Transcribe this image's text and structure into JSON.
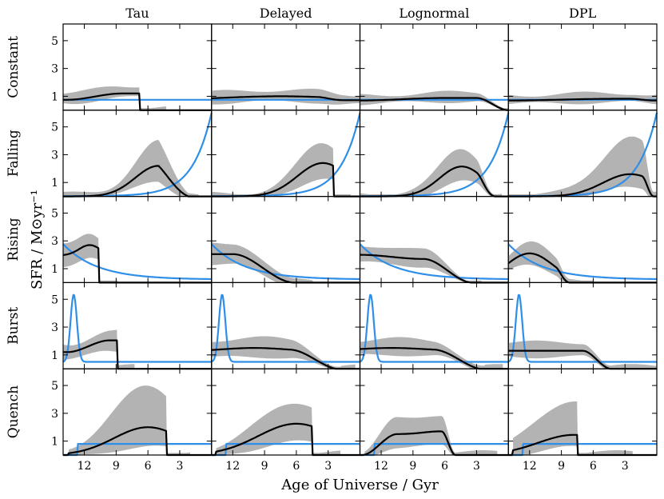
{
  "chart_data": {
    "type": "line",
    "layout": "grid 5 rows x 4 columns, shared axes",
    "column_titles": [
      "Tau",
      "Delayed",
      "Lognormal",
      "DPL"
    ],
    "row_labels": [
      "Constant",
      "Falling",
      "Rising",
      "Burst",
      "Quench"
    ],
    "xlabel": "Age of Universe / Gyr",
    "ylabel": "SFR / M⊙yr⁻¹",
    "xlim": [
      14,
      0
    ],
    "x_ticks": [
      12,
      9,
      6,
      3
    ],
    "y_ticks": [
      1,
      3,
      5
    ],
    "y_tick_labels": [
      "1",
      "3",
      "5"
    ],
    "ylim": [
      0,
      6.2
    ],
    "series_legend": [
      "true SFH (blue line)",
      "fitted median (black line)",
      "posterior range (grey band)"
    ],
    "colors": {
      "true": "#2f8fe8",
      "fit": "#000000",
      "band": "#b3b3b3"
    },
    "truth_shapes": {
      "Constant": "flat 0.75 from 14 to 0 Gyr",
      "Falling": "exponential rise toward 6.0 at 0 Gyr",
      "Rising": "decline from 2.6 at 14 Gyr to ~0.3",
      "Burst": "spike to 5.3 near 13 Gyr, then flat 0.5",
      "Quench": "0 before 12.6 Gyr, flat 0.8 after"
    }
  }
}
